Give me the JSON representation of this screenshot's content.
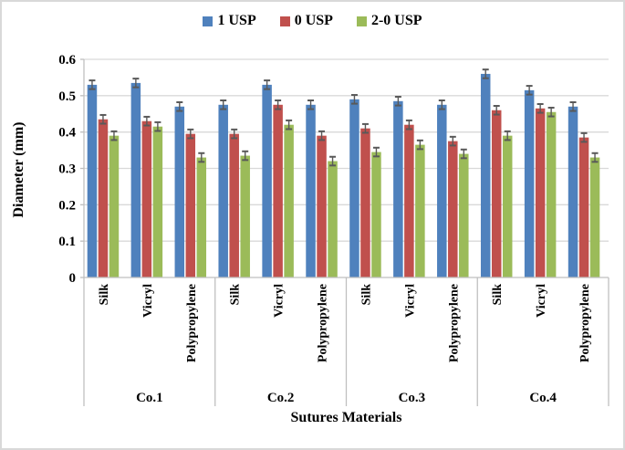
{
  "figure": {
    "background": "#ffffff",
    "border_color": "#d9d9d9"
  },
  "chart_data": {
    "type": "bar",
    "title": "",
    "xlabel": "Sutures Materials",
    "ylabel": "Diameter (mm)",
    "ylim": [
      0,
      0.6
    ],
    "y_ticks": [
      "0",
      "0.1",
      "0.2",
      "0.3",
      "0.4",
      "0.5",
      "0.6"
    ],
    "grid": true,
    "legend_position": "top-center",
    "group_labels": [
      "Co.1",
      "Co.2",
      "Co.3",
      "Co.4"
    ],
    "categories_per_group": [
      "Silk",
      "Vicryl",
      "Polypropylene"
    ],
    "categories": [
      "Co.1 Silk",
      "Co.1 Vicryl",
      "Co.1 Polypropylene",
      "Co.2 Silk",
      "Co.2 Vicryl",
      "Co.2 Polypropylene",
      "Co.3 Silk",
      "Co.3 Vicryl",
      "Co.3 Polypropylene",
      "Co.4 Silk",
      "Co.4 Vicryl",
      "Co.4 Polypropylene"
    ],
    "series": [
      {
        "name": "1 USP",
        "color": "#4F81BD",
        "values": [
          0.53,
          0.535,
          0.47,
          0.475,
          0.53,
          0.475,
          0.49,
          0.485,
          0.475,
          0.56,
          0.515,
          0.47
        ]
      },
      {
        "name": "0 USP",
        "color": "#C0504D",
        "values": [
          0.435,
          0.43,
          0.395,
          0.395,
          0.475,
          0.39,
          0.41,
          0.42,
          0.375,
          0.46,
          0.465,
          0.385
        ]
      },
      {
        "name": "2-0 USP",
        "color": "#9BBB59",
        "values": [
          0.39,
          0.415,
          0.33,
          0.335,
          0.42,
          0.32,
          0.345,
          0.365,
          0.34,
          0.39,
          0.455,
          0.33
        ]
      }
    ],
    "error_bar_half_height": 0.012,
    "error_bar_color": "#595959",
    "gridline_color": "#d9d9d9",
    "axis_color": "#bfbfbf",
    "text_color": "#000000"
  }
}
